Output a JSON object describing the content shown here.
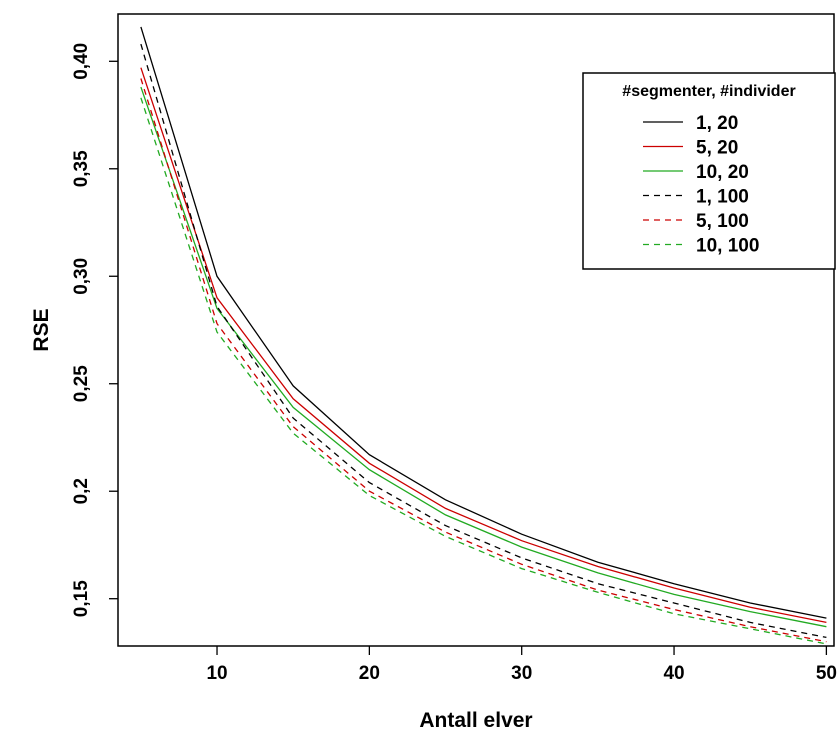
{
  "chart_data": {
    "type": "line",
    "title": "",
    "xlabel": "Antall elver",
    "ylabel": "RSE",
    "xlim": [
      3.5,
      50.5
    ],
    "ylim": [
      0.128,
      0.422
    ],
    "x_ticks": [
      10,
      20,
      30,
      40,
      50
    ],
    "x_tick_labels": [
      "10",
      "20",
      "30",
      "40",
      "50"
    ],
    "y_ticks": [
      0.15,
      0.2,
      0.25,
      0.3,
      0.35,
      0.4
    ],
    "y_tick_labels": [
      "0,15",
      "0,2",
      "0,25",
      "0,30",
      "0,35",
      "0,40"
    ],
    "grid": false,
    "legend": {
      "title": "#segmenter, #individer",
      "position": "top-right"
    },
    "x": [
      5,
      10,
      15,
      20,
      25,
      30,
      35,
      40,
      45,
      50
    ],
    "series": [
      {
        "name": "1, 20",
        "color": "#000000",
        "dash": "solid",
        "values": [
          0.416,
          0.3,
          0.249,
          0.217,
          0.196,
          0.18,
          0.167,
          0.157,
          0.148,
          0.141
        ]
      },
      {
        "name": "5, 20",
        "color": "#cc0000",
        "dash": "solid",
        "values": [
          0.397,
          0.29,
          0.243,
          0.213,
          0.192,
          0.177,
          0.165,
          0.155,
          0.146,
          0.139
        ]
      },
      {
        "name": "10, 20",
        "color": "#22aa22",
        "dash": "solid",
        "values": [
          0.388,
          0.285,
          0.239,
          0.21,
          0.189,
          0.174,
          0.162,
          0.152,
          0.144,
          0.137
        ]
      },
      {
        "name": "1, 100",
        "color": "#000000",
        "dash": "dashed",
        "values": [
          0.408,
          0.286,
          0.234,
          0.204,
          0.184,
          0.169,
          0.157,
          0.148,
          0.139,
          0.132
        ]
      },
      {
        "name": "5, 100",
        "color": "#cc0000",
        "dash": "dashed",
        "values": [
          0.392,
          0.278,
          0.23,
          0.2,
          0.181,
          0.166,
          0.154,
          0.145,
          0.137,
          0.13
        ]
      },
      {
        "name": "10, 100",
        "color": "#22aa22",
        "dash": "dashed",
        "values": [
          0.383,
          0.274,
          0.227,
          0.198,
          0.179,
          0.164,
          0.153,
          0.143,
          0.136,
          0.129
        ]
      }
    ]
  }
}
